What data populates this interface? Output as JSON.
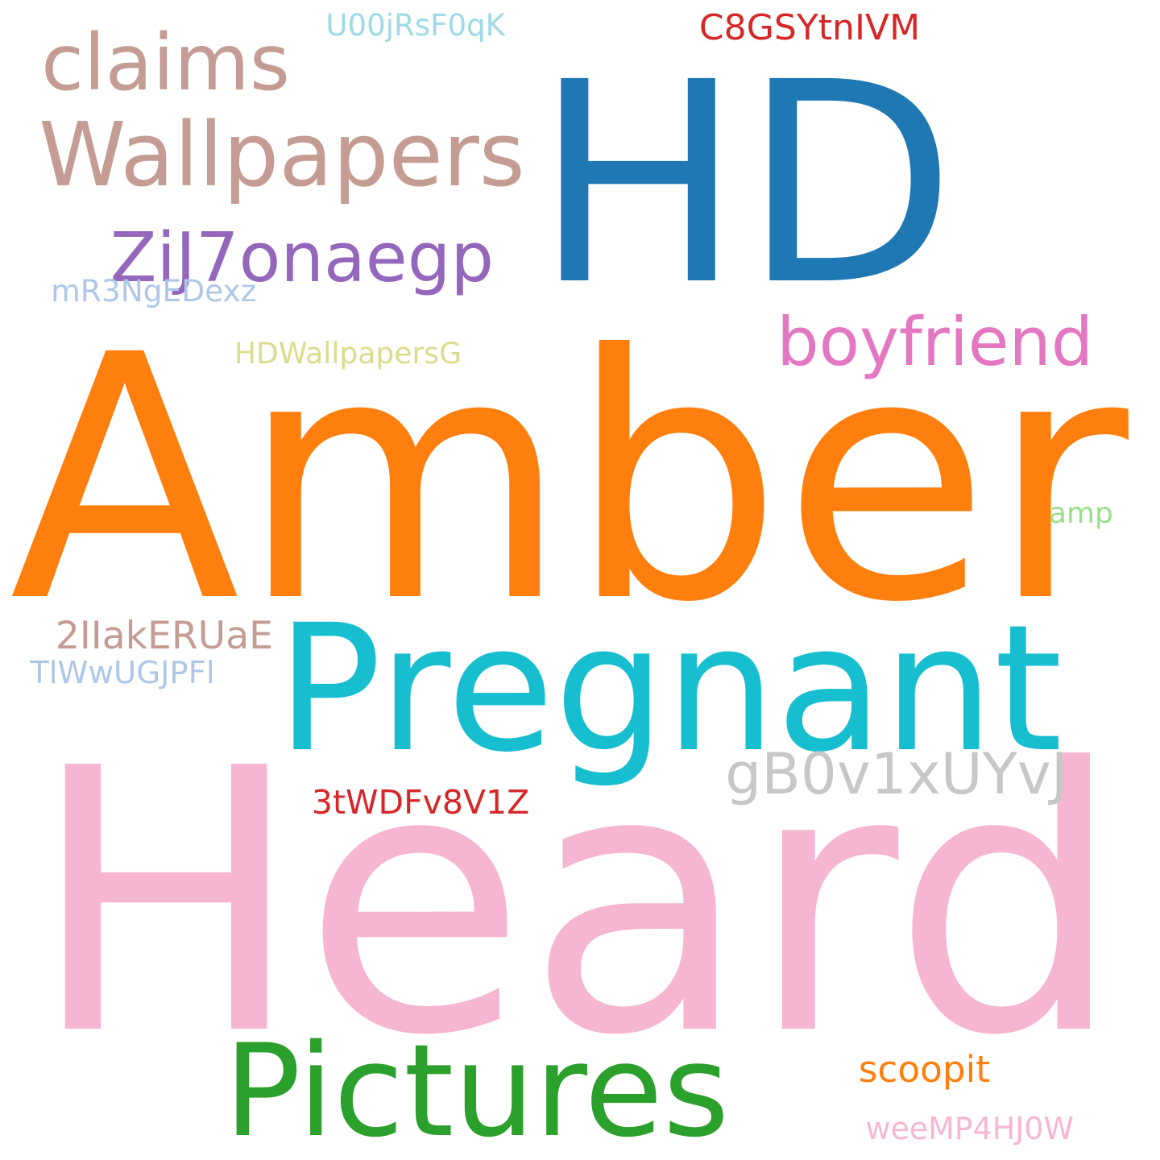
{
  "word_cloud": {
    "background": "#ffffff",
    "words": [
      {
        "text": "Heard",
        "color": "#f6b6d2"
      },
      {
        "text": "Amber",
        "color": "#ff7f0e"
      },
      {
        "text": "HD",
        "color": "#1f77b4"
      },
      {
        "text": "Pregnant",
        "color": "#17becf"
      },
      {
        "text": "Pictures",
        "color": "#2ca02c"
      },
      {
        "text": "Wallpapers",
        "color": "#c49c94"
      },
      {
        "text": "claims",
        "color": "#c49c94"
      },
      {
        "text": "boyfriend",
        "color": "#e377c2"
      },
      {
        "text": "ZiJ7onaegp",
        "color": "#9467bd"
      },
      {
        "text": "gB0v1xUYvJ",
        "color": "#c7c7c7"
      },
      {
        "text": "scoopit",
        "color": "#ff7f0e"
      },
      {
        "text": "C8GSYtnIVM",
        "color": "#d62728"
      },
      {
        "text": "U00jRsF0qK",
        "color": "#9edae5"
      },
      {
        "text": "mR3NgEDexz",
        "color": "#aec7e8"
      },
      {
        "text": "HDWallpapersG",
        "color": "#dbdb8d"
      },
      {
        "text": "amp",
        "color": "#98df8a"
      },
      {
        "text": "2IIakERUaE",
        "color": "#c49c94"
      },
      {
        "text": "TlWwUGJPFl",
        "color": "#aec7e8"
      },
      {
        "text": "3tWDFv8V1Z",
        "color": "#d62728"
      },
      {
        "text": "weeMP4HJ0W",
        "color": "#f7b6d2"
      }
    ]
  }
}
